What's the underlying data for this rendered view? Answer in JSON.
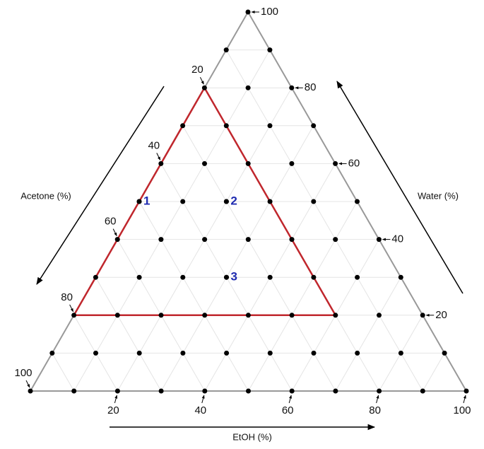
{
  "chart_data": {
    "type": "ternary",
    "axes": {
      "acetone": {
        "label": "Acetone (%)",
        "ticks": [
          20,
          40,
          60,
          80,
          100
        ]
      },
      "etoh": {
        "label": "EtOH (%)",
        "ticks": [
          20,
          40,
          60,
          80,
          100
        ]
      },
      "water": {
        "label": "Water (%)",
        "ticks": [
          20,
          40,
          60,
          80,
          100
        ]
      }
    },
    "region": {
      "color": "#c0272d",
      "vertices": [
        {
          "acetone": 20,
          "etoh": 0,
          "water": 80
        },
        {
          "acetone": 80,
          "etoh": 0,
          "water": 20
        },
        {
          "acetone": 20,
          "etoh": 60,
          "water": 20
        }
      ]
    },
    "points": [
      {
        "label": "1",
        "acetone": 50,
        "etoh": 0,
        "water": 50
      },
      {
        "label": "2",
        "acetone": 30,
        "etoh": 20,
        "water": 50
      },
      {
        "label": "3",
        "acetone": 40,
        "etoh": 30,
        "water": 30
      }
    ]
  }
}
